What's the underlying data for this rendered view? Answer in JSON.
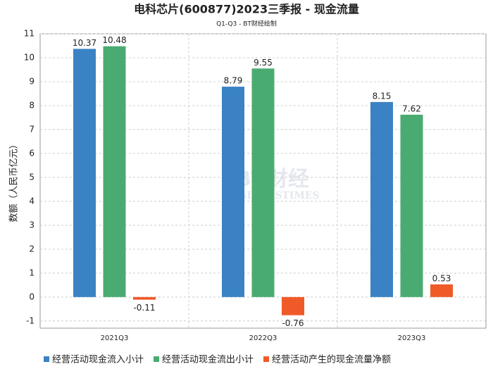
{
  "chart_data": {
    "type": "bar",
    "title": "电科芯片(600877)2023三季报 - 现金流量",
    "subtitle": "Q1-Q3 - BT财经绘制",
    "y_label": "数额（人民币亿元）",
    "watermark": [
      "BT财经",
      "BUSINESSTIMES"
    ],
    "categories": [
      "2021Q3",
      "2022Q3",
      "2023Q3"
    ],
    "series": [
      {
        "name": "经营活动现金流入小计",
        "color": "#3a82c4",
        "values": [
          10.37,
          8.79,
          8.15
        ]
      },
      {
        "name": "经营活动现金流出小计",
        "color": "#4aab72",
        "values": [
          10.48,
          9.55,
          7.62
        ]
      },
      {
        "name": "经营活动产生的现金流量净额",
        "color": "#f05a28",
        "values": [
          -0.11,
          -0.76,
          0.53
        ]
      }
    ],
    "ylim": [
      -1.3,
      11
    ],
    "yticks": [
      -1,
      0,
      1,
      2,
      3,
      4,
      5,
      6,
      7,
      8,
      9,
      10,
      11
    ],
    "grid": true,
    "legend": "bottom"
  }
}
